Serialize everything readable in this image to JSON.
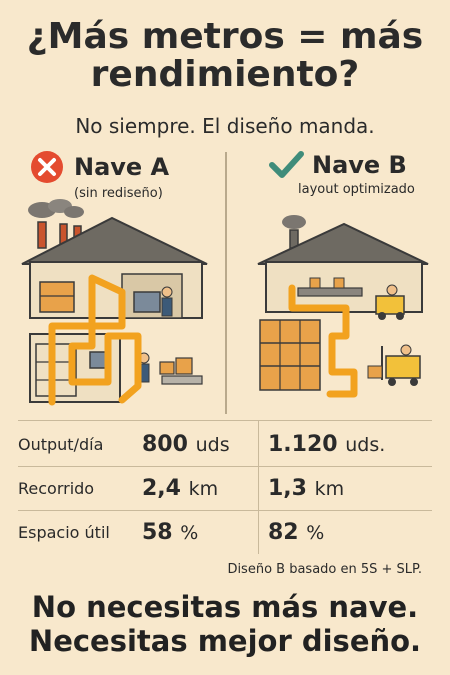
{
  "header": {
    "title_line1": "¿Más metros = más",
    "title_line2": "rendimiento?",
    "subtitle": "No siempre. El diseño manda."
  },
  "columns": {
    "a": {
      "name": "Nave A",
      "sub": "(sin rediseño)",
      "icon": "cross-icon",
      "icon_color": "#e44b2f"
    },
    "b": {
      "name": "Nave B",
      "sub": "layout optimizado",
      "icon": "check-icon",
      "icon_color": "#3f8c7a"
    }
  },
  "metrics": [
    {
      "label": "Output/día",
      "a_value": "800",
      "a_unit": "uds",
      "b_value": "1.120",
      "b_unit": "uds."
    },
    {
      "label": "Recorrido",
      "a_value": "2,4",
      "a_unit": "km",
      "b_value": "1,3",
      "b_unit": "km"
    },
    {
      "label": "Espacio útil",
      "a_value": "58",
      "a_unit": "%",
      "b_value": "82",
      "b_unit": "%"
    }
  ],
  "note": "Diseño B basado en 5S + SLP.",
  "closing": {
    "line1": "No necesitas más nave.",
    "line2": "Necesitas mejor diseño."
  },
  "colors": {
    "background": "#f8e8cc",
    "flow_path": "#f2a21f",
    "building": "#efe0c2",
    "roof": "#6e6a62",
    "shelf": "#e8a24a"
  }
}
